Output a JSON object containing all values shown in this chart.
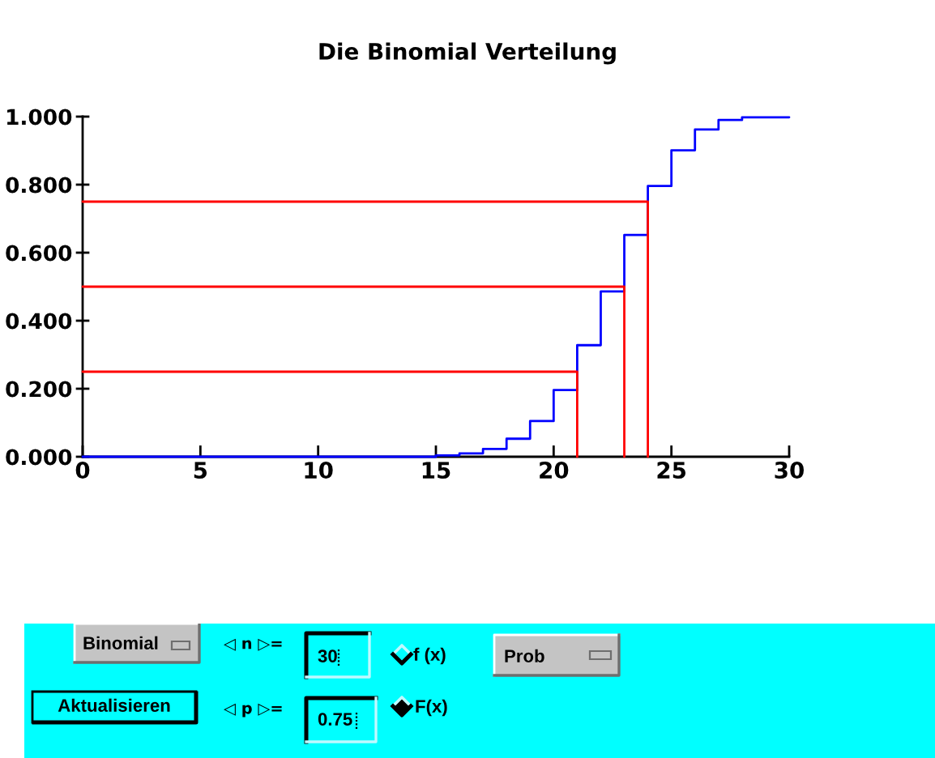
{
  "chart_data": [
    {
      "type": "step",
      "title": "Die Binomial Verteilung",
      "xlim": [
        0,
        30
      ],
      "xticks": [
        0,
        5,
        10,
        15,
        20,
        25,
        30
      ],
      "ylim": [
        0,
        1
      ],
      "yticks": [
        {
          "value": 0,
          "label": "0.000"
        },
        {
          "value": 0.2,
          "label": "0.200"
        },
        {
          "value": 0.4,
          "label": "0.400"
        },
        {
          "value": 0.6,
          "label": "0.600"
        },
        {
          "value": 0.8,
          "label": "0.800"
        },
        {
          "value": 1,
          "label": "1.000"
        }
      ],
      "grid": false,
      "series": [
        {
          "type": "step",
          "color": "#0000ff",
          "x": [
            0,
            15,
            16,
            17,
            18,
            19,
            20,
            21,
            22,
            23,
            24,
            25,
            26,
            27,
            28,
            30
          ],
          "values": [
            0,
            0.004,
            0.01,
            0.023,
            0.053,
            0.105,
            0.196,
            0.328,
            0.486,
            0.652,
            0.796,
            0.901,
            0.962,
            0.99,
            0.998,
            0.998
          ]
        },
        {
          "type": "line",
          "color": "#ff0000",
          "x": [
            0,
            21,
            21
          ],
          "values": [
            0.25,
            0.25,
            0
          ]
        },
        {
          "type": "line",
          "color": "#ff0000",
          "x": [
            0,
            23,
            23
          ],
          "values": [
            0.5,
            0.5,
            0
          ]
        },
        {
          "type": "line",
          "color": "#ff0000",
          "x": [
            0,
            24,
            24
          ],
          "values": [
            0.75,
            0.75,
            0
          ]
        }
      ]
    },
    {
      "type": "other",
      "annotations": [
        "Binomial",
        "◁ n ▷=",
        "30",
        "f (x)",
        "Prob",
        "Aktualisieren",
        "◁ p ▷=",
        "0.75",
        "F(x)"
      ]
    }
  ]
}
